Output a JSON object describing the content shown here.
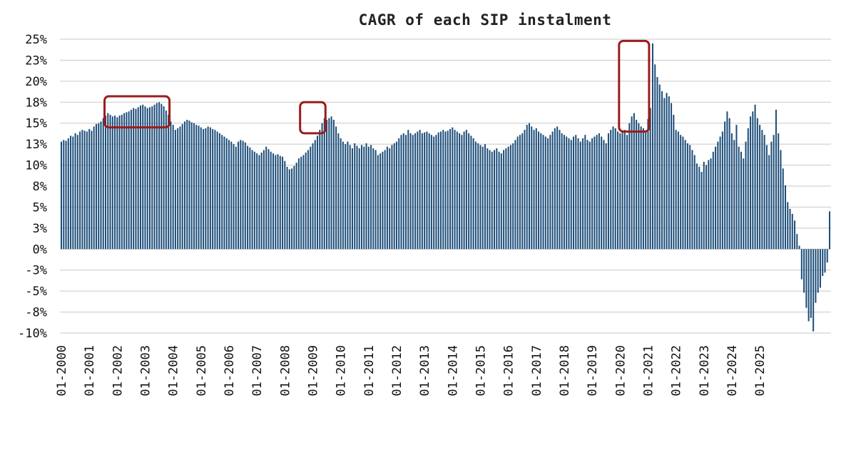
{
  "chart_data": {
    "type": "bar",
    "title": "CAGR of each SIP instalment",
    "xlabel": "",
    "ylabel": "",
    "ylim": [
      -10,
      25
    ],
    "grid": true,
    "legend": "none",
    "y_ticks": [
      {
        "value": 25,
        "label": "25%"
      },
      {
        "value": 22.5,
        "label": "23%"
      },
      {
        "value": 20,
        "label": "20%"
      },
      {
        "value": 17.5,
        "label": "18%"
      },
      {
        "value": 15,
        "label": "15%"
      },
      {
        "value": 12.5,
        "label": "13%"
      },
      {
        "value": 10,
        "label": "10%"
      },
      {
        "value": 7.5,
        "label": "8%"
      },
      {
        "value": 5,
        "label": "5%"
      },
      {
        "value": 2.5,
        "label": "3%"
      },
      {
        "value": 0,
        "label": "0%"
      },
      {
        "value": -2.5,
        "label": "-3%"
      },
      {
        "value": -5,
        "label": "-5%"
      },
      {
        "value": -7.5,
        "label": "-8%"
      },
      {
        "value": -10,
        "label": "-10%"
      }
    ],
    "x_ticks": [
      "01-2000",
      "01-2001",
      "01-2002",
      "01-2003",
      "01-2004",
      "01-2005",
      "01-2006",
      "01-2007",
      "01-2008",
      "01-2009",
      "01-2010",
      "01-2011",
      "01-2012",
      "01-2013",
      "01-2014",
      "01-2015",
      "01-2016",
      "01-2017",
      "01-2018",
      "01-2019",
      "01-2020",
      "01-2021",
      "01-2022",
      "01-2023",
      "01-2024",
      "01-2025"
    ],
    "series": [
      {
        "values": [
          12.8,
          13.0,
          12.9,
          13.2,
          13.5,
          13.4,
          13.8,
          13.6,
          14.0,
          14.2,
          14.1,
          14.0,
          14.3,
          14.1,
          14.6,
          14.9,
          15.0,
          15.2,
          15.6,
          15.9,
          16.2,
          16.0,
          15.8,
          15.9,
          15.7,
          15.9,
          16.0,
          16.2,
          16.3,
          16.4,
          16.6,
          16.8,
          16.7,
          16.9,
          17.1,
          17.2,
          17.0,
          16.8,
          16.9,
          17.0,
          17.2,
          17.4,
          17.5,
          17.3,
          17.0,
          16.5,
          16.0,
          15.2,
          14.8,
          14.2,
          14.4,
          14.6,
          14.9,
          15.2,
          15.4,
          15.3,
          15.1,
          15.0,
          14.8,
          14.7,
          14.5,
          14.3,
          14.4,
          14.6,
          14.5,
          14.3,
          14.2,
          14.0,
          13.8,
          13.6,
          13.4,
          13.2,
          13.0,
          12.8,
          12.5,
          12.2,
          12.8,
          13.0,
          12.9,
          12.7,
          12.3,
          12.1,
          11.8,
          11.6,
          11.4,
          11.2,
          11.5,
          11.8,
          12.2,
          11.9,
          11.6,
          11.4,
          11.2,
          11.3,
          11.1,
          11.0,
          10.5,
          9.8,
          9.5,
          9.6,
          9.9,
          10.3,
          10.8,
          11.0,
          11.2,
          11.5,
          11.8,
          12.2,
          12.6,
          13.0,
          13.5,
          14.2,
          15.0,
          15.6,
          15.4,
          15.6,
          15.8,
          15.4,
          14.6,
          13.8,
          13.2,
          12.8,
          12.5,
          12.8,
          12.4,
          12.0,
          12.6,
          12.3,
          12.0,
          12.4,
          12.2,
          12.6,
          12.2,
          12.4,
          12.0,
          11.8,
          11.2,
          11.4,
          11.6,
          11.8,
          12.2,
          12.0,
          12.4,
          12.6,
          12.8,
          13.2,
          13.6,
          13.8,
          13.6,
          14.2,
          13.8,
          13.6,
          13.8,
          14.0,
          14.2,
          13.8,
          13.9,
          14.0,
          13.8,
          13.6,
          13.4,
          13.6,
          13.9,
          14.0,
          14.2,
          14.0,
          14.1,
          14.3,
          14.5,
          14.2,
          14.0,
          13.8,
          13.6,
          14.0,
          14.2,
          13.8,
          13.5,
          13.2,
          12.8,
          12.6,
          12.4,
          12.2,
          12.5,
          12.0,
          11.8,
          11.6,
          11.8,
          12.0,
          11.6,
          11.4,
          11.8,
          12.0,
          12.2,
          12.4,
          12.6,
          13.0,
          13.4,
          13.6,
          13.8,
          14.2,
          14.8,
          15.0,
          14.6,
          14.2,
          14.4,
          14.0,
          13.8,
          13.6,
          13.4,
          13.2,
          13.6,
          14.0,
          14.4,
          14.6,
          14.2,
          13.8,
          13.6,
          13.4,
          13.2,
          13.0,
          13.4,
          13.6,
          13.2,
          12.8,
          13.2,
          13.6,
          13.0,
          12.8,
          13.2,
          13.4,
          13.6,
          13.8,
          13.4,
          13.0,
          12.6,
          13.8,
          14.2,
          14.6,
          14.4,
          14.0,
          13.8,
          14.0,
          14.2,
          13.6,
          15.0,
          15.8,
          16.2,
          15.4,
          15.0,
          14.6,
          14.4,
          14.0,
          15.5,
          16.8,
          24.5,
          22.0,
          20.5,
          19.6,
          18.8,
          18.0,
          18.6,
          18.2,
          17.4,
          16.0,
          14.2,
          14.0,
          13.6,
          13.4,
          13.0,
          12.6,
          12.4,
          11.8,
          11.2,
          10.2,
          9.8,
          9.2,
          10.4,
          10.0,
          10.6,
          10.8,
          11.6,
          12.2,
          12.8,
          13.4,
          14.0,
          15.2,
          16.4,
          15.6,
          13.8,
          13.0,
          14.8,
          12.2,
          11.6,
          10.8,
          12.8,
          14.4,
          15.8,
          16.4,
          17.2,
          15.6,
          14.8,
          14.2,
          13.6,
          12.4,
          11.2,
          12.8,
          13.6,
          16.6,
          13.8,
          11.8,
          9.6,
          7.6,
          5.6,
          4.8,
          4.2,
          3.4,
          1.8,
          0.4,
          -3.6,
          -5.2,
          -7.0,
          -8.6,
          -8.2,
          -9.8,
          -6.4,
          -5.2,
          -4.6,
          -3.2,
          -2.8,
          -1.6,
          4.5
        ]
      }
    ],
    "annotations": [
      {
        "type": "box",
        "label": "",
        "x_range": [
          "10-2001",
          "09-2003"
        ],
        "y_range": [
          14.5,
          18.2
        ]
      },
      {
        "type": "box",
        "label": "",
        "x_range": [
          "10-2008",
          "04-2009"
        ],
        "y_range": [
          13.8,
          17.5
        ]
      },
      {
        "type": "box",
        "label": "",
        "x_range": [
          "03-2020",
          "11-2020"
        ],
        "y_range": [
          14.0,
          24.8
        ]
      }
    ],
    "bar_color": "#1d4e7a",
    "box_color": "#9b1c1c",
    "grid_color": "#c8c8c8"
  }
}
